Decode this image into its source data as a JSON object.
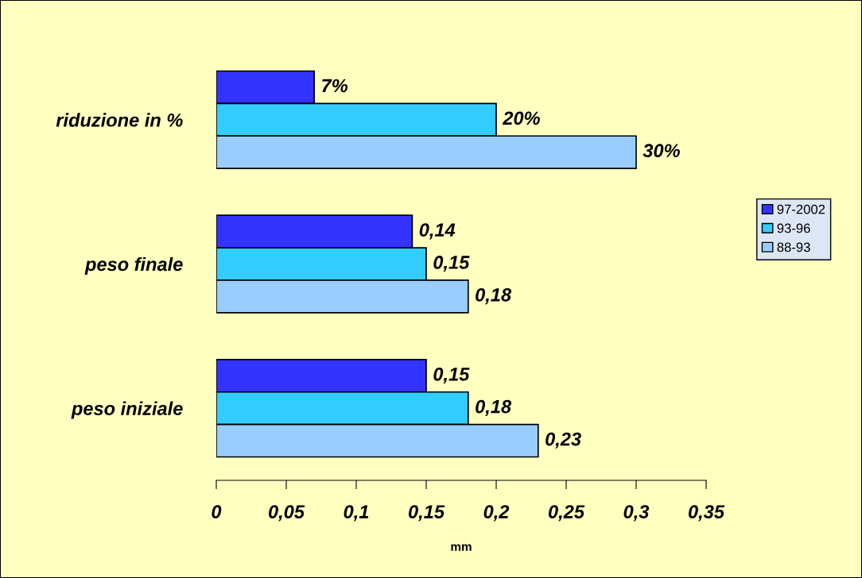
{
  "chart_data": {
    "type": "bar",
    "orientation": "horizontal",
    "xlabel": "mm",
    "categories": [
      "riduzione in %",
      "peso finale",
      "peso iniziale"
    ],
    "series": [
      {
        "name": "97-2002",
        "color": "#3333ff",
        "values": [
          0.07,
          0.14,
          0.15
        ],
        "value_labels": [
          "7%",
          "0,14",
          "0,15"
        ]
      },
      {
        "name": "93-96",
        "color": "#33ccff",
        "values": [
          0.2,
          0.15,
          0.18
        ],
        "value_labels": [
          "20%",
          "0,15",
          "0,18"
        ]
      },
      {
        "name": "88-93",
        "color": "#99ccff",
        "values": [
          0.3,
          0.18,
          0.23
        ],
        "value_labels": [
          "30%",
          "0,18",
          "0,23"
        ]
      }
    ],
    "xlim": [
      0,
      0.35
    ],
    "xticks": [
      0,
      {
        "value": 0.05,
        "label": "0,05"
      },
      {
        "value": 0.1,
        "label": "0,1"
      },
      {
        "value": 0.15,
        "label": "0,15"
      },
      {
        "value": 0.2,
        "label": "0,2"
      },
      {
        "value": 0.25,
        "label": "0,25"
      },
      {
        "value": 0.3,
        "label": "0,3"
      },
      {
        "value": 0.35,
        "label": "0,35"
      }
    ],
    "grid": false,
    "legend": "right"
  }
}
